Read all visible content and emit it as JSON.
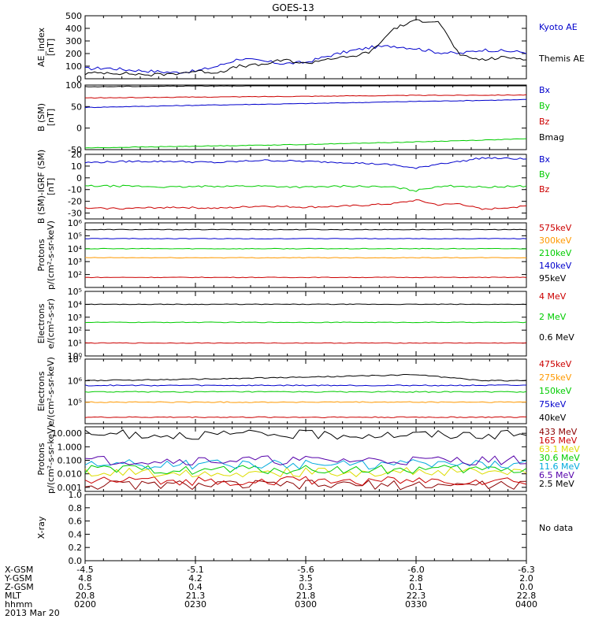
{
  "title": "GOES-13",
  "footer": {
    "row_labels": [
      "X-GSM",
      "Y-GSM",
      "Z-GSM",
      "MLT",
      "hhmm",
      "2013 Mar 20"
    ],
    "columns": [
      {
        "values": [
          "-4.5",
          "4.8",
          "0.5",
          "20.8",
          "0200"
        ]
      },
      {
        "values": [
          "-5.1",
          "4.2",
          "0.4",
          "21.3",
          "0230"
        ]
      },
      {
        "values": [
          "-5.6",
          "3.5",
          "0.3",
          "21.8",
          "0300"
        ]
      },
      {
        "values": [
          "-6.0",
          "2.8",
          "0.1",
          "22.3",
          "0330"
        ]
      },
      {
        "values": [
          "-6.3",
          "2.0",
          "0.0",
          "22.8",
          "0400"
        ]
      }
    ]
  },
  "chart_data": [
    {
      "type": "line",
      "ylabel": [
        "AE_index",
        "[nT]"
      ],
      "ylim": [
        0,
        500
      ],
      "y_scale": "linear",
      "yticks": [
        0,
        100,
        200,
        300,
        400,
        500
      ],
      "ytick_labels": [
        "0",
        "100",
        "200",
        "300",
        "400",
        "500"
      ],
      "x_range": [
        "0200",
        "0400"
      ],
      "series": [
        {
          "name": "Kyoto AE",
          "color": "#0000cc",
          "x": [
            0,
            0.05,
            0.1,
            0.15,
            0.2,
            0.25,
            0.3,
            0.35,
            0.4,
            0.45,
            0.5,
            0.55,
            0.6,
            0.65,
            0.7,
            0.75,
            0.8,
            0.85,
            0.9,
            0.95,
            1.0
          ],
          "y": [
            80,
            85,
            70,
            60,
            50,
            60,
            100,
            160,
            140,
            120,
            130,
            180,
            220,
            250,
            260,
            240,
            210,
            200,
            230,
            220,
            210
          ]
        },
        {
          "name": "Themis AE",
          "color": "#000000",
          "x": [
            0,
            0.05,
            0.1,
            0.15,
            0.2,
            0.25,
            0.3,
            0.35,
            0.4,
            0.45,
            0.5,
            0.55,
            0.6,
            0.65,
            0.7,
            0.75,
            0.8,
            0.85,
            0.9,
            0.95,
            1.0
          ],
          "y": [
            40,
            50,
            40,
            30,
            40,
            60,
            50,
            100,
            110,
            150,
            120,
            160,
            170,
            220,
            400,
            460,
            460,
            180,
            150,
            170,
            160
          ]
        }
      ]
    },
    {
      "type": "line",
      "ylabel": [
        "B (SM)",
        "[nT]"
      ],
      "ylim": [
        -50,
        100
      ],
      "y_scale": "linear",
      "yticks": [
        -50,
        0,
        50,
        100
      ],
      "ytick_labels": [
        "-50",
        "0",
        "50",
        "100"
      ],
      "x_range": [
        "0200",
        "0400"
      ],
      "series": [
        {
          "name": "Bx",
          "color": "#0000cc",
          "x": [
            0,
            0.25,
            0.5,
            0.75,
            1.0
          ],
          "y": [
            48,
            53,
            57,
            62,
            66
          ]
        },
        {
          "name": "By",
          "color": "#00cc00",
          "x": [
            0,
            0.25,
            0.5,
            0.75,
            1.0
          ],
          "y": [
            -46,
            -42,
            -38,
            -32,
            -25
          ]
        },
        {
          "name": "Bz",
          "color": "#cc0000",
          "x": [
            0,
            0.25,
            0.5,
            0.75,
            1.0
          ],
          "y": [
            70,
            72,
            74,
            76,
            77
          ]
        },
        {
          "name": "Bmag",
          "color": "#000000",
          "x": [
            0,
            0.25,
            0.5,
            0.75,
            1.0
          ],
          "y": [
            96,
            98,
            99,
            100,
            100
          ]
        }
      ]
    },
    {
      "type": "line",
      "ylabel": [
        "B (SM)-IGRF (SM)",
        "[nT]"
      ],
      "ylim": [
        -35,
        20
      ],
      "y_scale": "linear",
      "yticks": [
        -30,
        -20,
        -10,
        0,
        10,
        20
      ],
      "ytick_labels": [
        "-30",
        "-20",
        "-10",
        "0",
        "10",
        "20"
      ],
      "x_range": [
        "0200",
        "0400"
      ],
      "series": [
        {
          "name": "Bx",
          "color": "#0000cc",
          "x": [
            0,
            0.1,
            0.2,
            0.3,
            0.4,
            0.5,
            0.6,
            0.7,
            0.75,
            0.8,
            0.85,
            0.9,
            1.0
          ],
          "y": [
            13,
            14,
            14,
            13,
            15,
            14,
            13,
            11,
            8,
            12,
            14,
            17,
            16
          ]
        },
        {
          "name": "By",
          "color": "#00cc00",
          "x": [
            0,
            0.1,
            0.2,
            0.3,
            0.4,
            0.5,
            0.6,
            0.7,
            0.75,
            0.8,
            0.85,
            0.9,
            1.0
          ],
          "y": [
            -7,
            -7,
            -8,
            -7,
            -7,
            -8,
            -7,
            -8,
            -11,
            -7,
            -7,
            -8,
            -7
          ]
        },
        {
          "name": "Bz",
          "color": "#cc0000",
          "x": [
            0,
            0.1,
            0.2,
            0.3,
            0.4,
            0.5,
            0.6,
            0.7,
            0.75,
            0.8,
            0.85,
            0.9,
            1.0
          ],
          "y": [
            -26,
            -26,
            -25,
            -26,
            -24,
            -25,
            -24,
            -22,
            -19,
            -23,
            -22,
            -27,
            -24
          ]
        }
      ]
    },
    {
      "type": "line",
      "ylabel": [
        "Protons",
        "p/(cm²-s-sr-keV)"
      ],
      "ylim": [
        10,
        1000000
      ],
      "y_scale": "log",
      "yticks": [
        100,
        1000,
        10000,
        100000,
        1000000
      ],
      "ytick_labels": [
        "10²",
        "10³",
        "10⁴",
        "10⁵",
        "10⁶"
      ],
      "x_range": [
        "0200",
        "0400"
      ],
      "series": [
        {
          "name": "575keV",
          "color": "#cc0000",
          "x": [
            0,
            0.5,
            1.0
          ],
          "y": [
            60,
            60,
            60
          ]
        },
        {
          "name": "300keV",
          "color": "#ff9900",
          "x": [
            0,
            0.5,
            1.0
          ],
          "y": [
            2000,
            2000,
            2000
          ]
        },
        {
          "name": "210keV",
          "color": "#00cc00",
          "x": [
            0,
            0.5,
            1.0
          ],
          "y": [
            10000,
            10000,
            10000
          ]
        },
        {
          "name": "140keV",
          "color": "#0000cc",
          "x": [
            0,
            0.5,
            1.0
          ],
          "y": [
            60000,
            60000,
            60000
          ]
        },
        {
          "name": "95keV",
          "color": "#000000",
          "x": [
            0,
            0.5,
            1.0
          ],
          "y": [
            300000,
            300000,
            300000
          ]
        }
      ]
    },
    {
      "type": "line",
      "ylabel": [
        "Electrons",
        "e/(cm²-s-sr)"
      ],
      "ylim": [
        1,
        100000
      ],
      "y_scale": "log",
      "yticks": [
        1,
        10,
        100,
        1000,
        10000,
        100000
      ],
      "ytick_labels": [
        "10⁰",
        "10¹",
        "10²",
        "10³",
        "10⁴",
        "10⁵"
      ],
      "x_range": [
        "0200",
        "0400"
      ],
      "series": [
        {
          "name": "4 MeV",
          "color": "#cc0000",
          "x": [
            0,
            0.5,
            1.0
          ],
          "y": [
            10,
            10,
            10
          ]
        },
        {
          "name": "2 MeV",
          "color": "#00cc00",
          "x": [
            0,
            0.5,
            1.0
          ],
          "y": [
            400,
            400,
            400
          ]
        },
        {
          "name": "0.6 MeV",
          "color": "#000000",
          "x": [
            0,
            0.5,
            1.0
          ],
          "y": [
            10000,
            10000,
            10000
          ]
        }
      ]
    },
    {
      "type": "line",
      "ylabel": [
        "Electrons",
        "e/(cm²-s-sr-keV)"
      ],
      "ylim": [
        10000,
        10000000
      ],
      "y_scale": "log",
      "yticks": [
        100000,
        1000000,
        10000000
      ],
      "ytick_labels": [
        "10⁵",
        "10⁶",
        "10⁷"
      ],
      "x_range": [
        "0200",
        "0400"
      ],
      "series": [
        {
          "name": "475keV",
          "color": "#cc0000",
          "x": [
            0,
            0.5,
            1.0
          ],
          "y": [
            20000,
            20000,
            20000
          ]
        },
        {
          "name": "275keV",
          "color": "#ff9900",
          "x": [
            0,
            0.5,
            1.0
          ],
          "y": [
            100000,
            100000,
            100000
          ]
        },
        {
          "name": "150keV",
          "color": "#00cc00",
          "x": [
            0,
            0.5,
            1.0
          ],
          "y": [
            300000,
            300000,
            300000
          ]
        },
        {
          "name": "75keV",
          "color": "#0000cc",
          "x": [
            0,
            0.5,
            1.0
          ],
          "y": [
            600000,
            600000,
            600000
          ]
        },
        {
          "name": "40keV",
          "color": "#000000",
          "x": [
            0,
            0.3,
            0.6,
            0.75,
            0.9,
            1.0
          ],
          "y": [
            1000000,
            1200000,
            1600000,
            1900000,
            1000000,
            1000000
          ]
        }
      ]
    },
    {
      "type": "line",
      "ylabel": [
        "Protons",
        "p/(cm²-s-sr-keV)"
      ],
      "ylim": [
        0.0005,
        30
      ],
      "y_scale": "log",
      "yticks": [
        0.001,
        0.01,
        0.1,
        1,
        10
      ],
      "ytick_labels": [
        "0.001",
        "0.010",
        "0.100",
        "1.000",
        "10.000"
      ],
      "x_range": [
        "0200",
        "0400"
      ],
      "series": [
        {
          "name": "433 MeV",
          "color": "#8b0000",
          "x": [
            0,
            0.5,
            1.0
          ],
          "y": [
            0.0015,
            0.0015,
            0.0015
          ]
        },
        {
          "name": "165 MeV",
          "color": "#cc0000",
          "x": [
            0,
            0.5,
            1.0
          ],
          "y": [
            0.003,
            0.003,
            0.003
          ]
        },
        {
          "name": "63.1 MeV",
          "color": "#dddd00",
          "x": [
            0,
            0.5,
            1.0
          ],
          "y": [
            0.013,
            0.013,
            0.013
          ]
        },
        {
          "name": "30.6 MeV",
          "color": "#00cc00",
          "x": [
            0,
            0.5,
            1.0
          ],
          "y": [
            0.02,
            0.02,
            0.02
          ]
        },
        {
          "name": "11.6 MeV",
          "color": "#00aadd",
          "x": [
            0,
            0.5,
            1.0
          ],
          "y": [
            0.05,
            0.05,
            0.05
          ]
        },
        {
          "name": "6.5 MeV",
          "color": "#5500aa",
          "x": [
            0,
            0.5,
            1.0
          ],
          "y": [
            0.1,
            0.1,
            0.1
          ]
        },
        {
          "name": "2.5 MeV",
          "color": "#000000",
          "x": [
            0,
            0.5,
            1.0
          ],
          "y": [
            8,
            8,
            8
          ]
        }
      ]
    },
    {
      "type": "line",
      "ylabel": [
        "X-ray",
        ""
      ],
      "ylim": [
        0,
        1.0
      ],
      "y_scale": "linear",
      "yticks": [
        0,
        0.2,
        0.4,
        0.6,
        0.8,
        1.0
      ],
      "ytick_labels": [
        "0.0",
        "0.2",
        "0.4",
        "0.6",
        "0.8",
        "1.0"
      ],
      "x_range": [
        "0200",
        "0400"
      ],
      "no_data_label": "No data",
      "series": []
    }
  ]
}
